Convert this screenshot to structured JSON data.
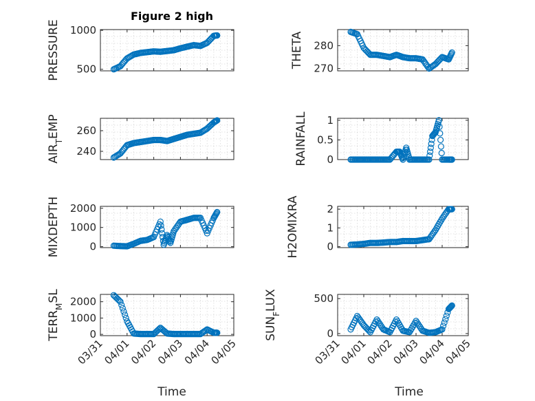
{
  "figure": {
    "title": "Figure 2 high",
    "marker_color": "#0072bd",
    "grid": "minor dotted"
  },
  "x_axis": {
    "label": "Time",
    "range": [
      "03/31",
      "04/05"
    ],
    "ticks": [
      "03/31",
      "04/01",
      "04/02",
      "04/03",
      "04/04",
      "04/05"
    ]
  },
  "chart_data": [
    {
      "type": "scatter",
      "title": "Figure 2 high",
      "ylabel": "PRESSURE",
      "ylim": [
        480,
        1010
      ],
      "yticks": [
        "500",
        "1000"
      ],
      "yticks_values": [
        500,
        1000
      ],
      "x": [
        "03/31 12:00",
        "03/31 18:00",
        "04/01 00:00",
        "04/01 06:00",
        "04/01 12:00",
        "04/01 18:00",
        "04/02 00:00",
        "04/02 06:00",
        "04/02 12:00",
        "04/02 18:00",
        "04/03 00:00",
        "04/03 06:00",
        "04/03 12:00",
        "04/03 18:00",
        "04/04 00:00",
        "04/04 06:00",
        "04/04 09:00"
      ],
      "values": [
        500,
        540,
        640,
        690,
        710,
        720,
        730,
        725,
        735,
        745,
        770,
        790,
        810,
        800,
        840,
        930,
        935
      ]
    },
    {
      "type": "scatter",
      "ylabel": "THETA",
      "ylim": [
        269,
        287
      ],
      "yticks": [
        "270",
        "280"
      ],
      "yticks_values": [
        270,
        280
      ],
      "x": [
        "03/31 12:00",
        "03/31 18:00",
        "04/01 00:00",
        "04/01 06:00",
        "04/01 12:00",
        "04/01 18:00",
        "04/02 00:00",
        "04/02 06:00",
        "04/02 12:00",
        "04/02 18:00",
        "04/03 00:00",
        "04/03 06:00",
        "04/03 12:00",
        "04/03 18:00",
        "04/04 00:00",
        "04/04 06:00",
        "04/04 09:00"
      ],
      "values": [
        286,
        285,
        279,
        276,
        276,
        275.5,
        275,
        276,
        275,
        274.5,
        274.5,
        274,
        270,
        272,
        275,
        274,
        277
      ]
    },
    {
      "type": "scatter",
      "ylabel": "AIR_TEMP",
      "ylim": [
        232,
        272
      ],
      "yticks": [
        "240",
        "260"
      ],
      "yticks_values": [
        240,
        260
      ],
      "x": [
        "03/31 12:00",
        "03/31 18:00",
        "04/01 00:00",
        "04/01 06:00",
        "04/01 12:00",
        "04/01 18:00",
        "04/02 00:00",
        "04/02 06:00",
        "04/02 12:00",
        "04/02 18:00",
        "04/03 00:00",
        "04/03 06:00",
        "04/03 12:00",
        "04/03 18:00",
        "04/04 00:00",
        "04/04 06:00",
        "04/04 09:00"
      ],
      "values": [
        234,
        238,
        246,
        248,
        249,
        250,
        251,
        251,
        250,
        252,
        254,
        256,
        257,
        258,
        262,
        268,
        270
      ]
    },
    {
      "type": "scatter",
      "ylabel": "RAINFALL",
      "ylim": [
        0,
        1.05
      ],
      "yticks": [
        "0",
        "0.5",
        "1"
      ],
      "yticks_values": [
        0,
        0.5,
        1
      ],
      "x": [
        "03/31 12:00",
        "03/31 18:00",
        "04/01 00:00",
        "04/01 06:00",
        "04/01 12:00",
        "04/01 18:00",
        "04/02 00:00",
        "04/02 06:00",
        "04/02 09:00",
        "04/02 12:00",
        "04/02 15:00",
        "04/02 18:00",
        "04/03 00:00",
        "04/03 06:00",
        "04/03 12:00",
        "04/03 15:00",
        "04/03 18:00",
        "04/03 21:00",
        "04/04 00:00",
        "04/04 06:00",
        "04/04 09:00"
      ],
      "values": [
        0,
        0,
        0,
        0,
        0,
        0,
        0,
        0.2,
        0.2,
        0,
        0.3,
        0,
        0,
        0,
        0,
        0.6,
        0.7,
        1.0,
        0,
        0,
        0
      ]
    },
    {
      "type": "scatter",
      "ylabel": "MIXDEPTH",
      "ylim": [
        -50,
        2100
      ],
      "yticks": [
        "0",
        "1000",
        "2000"
      ],
      "yticks_values": [
        0,
        1000,
        2000
      ],
      "x": [
        "03/31 12:00",
        "03/31 18:00",
        "04/01 00:00",
        "04/01 06:00",
        "04/01 12:00",
        "04/01 18:00",
        "04/02 00:00",
        "04/02 06:00",
        "04/02 09:00",
        "04/02 12:00",
        "04/02 15:00",
        "04/02 18:00",
        "04/03 00:00",
        "04/03 06:00",
        "04/03 12:00",
        "04/03 18:00",
        "04/04 00:00",
        "04/04 06:00",
        "04/04 09:00"
      ],
      "values": [
        50,
        30,
        20,
        150,
        300,
        350,
        500,
        1300,
        100,
        600,
        200,
        800,
        1300,
        1400,
        1500,
        1500,
        700,
        1500,
        1800
      ]
    },
    {
      "type": "scatter",
      "ylabel": "H2OMIXRA",
      "ylim": [
        -0.05,
        2.15
      ],
      "yticks": [
        "0",
        "1",
        "2"
      ],
      "yticks_values": [
        0,
        1,
        2
      ],
      "x": [
        "03/31 12:00",
        "03/31 18:00",
        "04/01 00:00",
        "04/01 06:00",
        "04/01 12:00",
        "04/01 18:00",
        "04/02 00:00",
        "04/02 06:00",
        "04/02 12:00",
        "04/02 18:00",
        "04/03 00:00",
        "04/03 06:00",
        "04/03 12:00",
        "04/03 18:00",
        "04/04 00:00",
        "04/04 06:00",
        "04/04 09:00"
      ],
      "values": [
        0.1,
        0.12,
        0.15,
        0.2,
        0.2,
        0.22,
        0.25,
        0.25,
        0.3,
        0.3,
        0.3,
        0.35,
        0.4,
        0.9,
        1.5,
        2.0,
        2.0
      ]
    },
    {
      "type": "scatter",
      "ylabel": "TERR_MSL",
      "ylim": [
        -80,
        2450
      ],
      "yticks": [
        "0",
        "1000",
        "2000"
      ],
      "yticks_values": [
        0,
        1000,
        2000
      ],
      "x": [
        "03/31 12:00",
        "03/31 18:00",
        "04/01 00:00",
        "04/01 06:00",
        "04/01 12:00",
        "04/01 18:00",
        "04/02 00:00",
        "04/02 06:00",
        "04/02 12:00",
        "04/02 18:00",
        "04/03 00:00",
        "04/03 06:00",
        "04/03 12:00",
        "04/03 18:00",
        "04/04 00:00",
        "04/04 06:00",
        "04/04 09:00"
      ],
      "values": [
        2400,
        2000,
        800,
        50,
        20,
        20,
        20,
        400,
        50,
        20,
        20,
        20,
        20,
        20,
        300,
        100,
        100
      ]
    },
    {
      "type": "scatter",
      "ylabel": "SUN_FLUX",
      "ylim": [
        -30,
        560
      ],
      "yticks": [
        "0",
        "500"
      ],
      "yticks_values": [
        0,
        500
      ],
      "x": [
        "03/31 12:00",
        "03/31 18:00",
        "04/01 00:00",
        "04/01 06:00",
        "04/01 12:00",
        "04/01 18:00",
        "04/02 00:00",
        "04/02 06:00",
        "04/02 12:00",
        "04/02 18:00",
        "04/03 00:00",
        "04/03 06:00",
        "04/03 12:00",
        "04/03 18:00",
        "04/04 00:00",
        "04/04 06:00",
        "04/04 09:00"
      ],
      "values": [
        60,
        250,
        120,
        20,
        200,
        60,
        20,
        200,
        40,
        20,
        180,
        40,
        10,
        20,
        60,
        350,
        400
      ]
    }
  ]
}
